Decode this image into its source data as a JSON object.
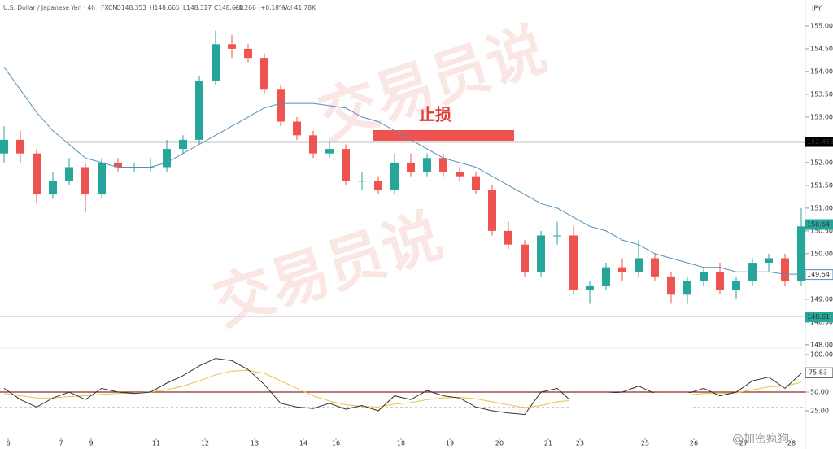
{
  "chart_data": {
    "type": "candlestick",
    "header": {
      "symbol": "U.S. Dollar / Japanese Yen · 4h · FXCM",
      "open": "O148.353",
      "high": "H148.665",
      "low": "L148.317",
      "close": "C148.618",
      "change": "+0.266 (+0.18%)",
      "volume": "Vol 41.78K"
    },
    "currency": "JPY",
    "annotation": "止损",
    "watermark": "交易员说",
    "credit": "@加密疯狗",
    "open": [
      152.2,
      152.5,
      152.2,
      151.3,
      151.6,
      151.9,
      151.3,
      152.0,
      151.9,
      151.9,
      151.9,
      152.3,
      152.5,
      153.8,
      154.6,
      154.5,
      154.3,
      153.6,
      152.9,
      152.6,
      152.2,
      152.3,
      151.6,
      151.6,
      151.4,
      152.0,
      151.8,
      152.1,
      151.8,
      151.7,
      151.4,
      150.5,
      150.2,
      149.6,
      150.4,
      150.4,
      149.2,
      149.3,
      149.7,
      149.6,
      149.9,
      149.5,
      149.1,
      149.4,
      149.6,
      149.2,
      149.4,
      149.8,
      149.9,
      149.4
    ],
    "high": [
      152.8,
      152.7,
      152.3,
      151.8,
      152.1,
      152.0,
      152.1,
      152.1,
      152.0,
      152.1,
      152.5,
      152.6,
      153.9,
      154.9,
      154.8,
      154.6,
      154.4,
      153.7,
      153.0,
      152.7,
      152.5,
      152.4,
      151.8,
      151.7,
      152.2,
      152.2,
      152.2,
      152.2,
      151.9,
      151.8,
      151.5,
      150.7,
      150.3,
      150.5,
      150.7,
      150.6,
      149.4,
      149.8,
      149.9,
      150.3,
      150.0,
      149.6,
      149.5,
      149.7,
      149.8,
      149.5,
      149.9,
      150.0,
      150.0,
      151.0
    ],
    "low": [
      152.0,
      152.0,
      151.1,
      151.2,
      151.5,
      150.9,
      151.2,
      151.8,
      151.8,
      151.8,
      151.8,
      152.2,
      152.4,
      153.7,
      154.3,
      154.2,
      153.5,
      152.8,
      152.5,
      152.1,
      152.1,
      151.5,
      151.4,
      151.3,
      151.3,
      151.7,
      151.7,
      151.7,
      151.6,
      151.3,
      150.4,
      150.1,
      149.5,
      149.5,
      150.2,
      149.1,
      148.9,
      149.2,
      149.4,
      149.5,
      149.4,
      148.9,
      148.9,
      149.3,
      149.1,
      149.0,
      149.3,
      149.6,
      149.3,
      149.3
    ],
    "close": [
      152.5,
      152.2,
      151.3,
      151.6,
      151.9,
      151.3,
      152.0,
      151.9,
      151.9,
      151.9,
      152.3,
      152.5,
      153.8,
      154.6,
      154.5,
      154.3,
      153.6,
      152.9,
      152.6,
      152.2,
      152.3,
      151.6,
      151.6,
      151.4,
      152.0,
      151.8,
      152.1,
      151.8,
      151.7,
      151.4,
      150.5,
      150.2,
      149.6,
      150.4,
      150.4,
      149.2,
      149.3,
      149.7,
      149.6,
      149.9,
      149.5,
      149.1,
      149.4,
      149.6,
      149.2,
      149.4,
      149.8,
      149.9,
      149.4,
      150.6
    ],
    "ma": [
      154.1,
      153.6,
      153.1,
      152.7,
      152.4,
      152.1,
      152.0,
      151.9,
      151.9,
      151.9,
      152.0,
      152.2,
      152.4,
      152.6,
      152.8,
      153.0,
      153.2,
      153.3,
      153.3,
      153.3,
      153.25,
      153.2,
      153.0,
      152.9,
      152.7,
      152.5,
      152.3,
      152.1,
      152.0,
      151.9,
      151.7,
      151.5,
      151.3,
      151.1,
      151.0,
      150.8,
      150.6,
      150.5,
      150.3,
      150.2,
      150.0,
      149.9,
      149.8,
      149.7,
      149.7,
      149.6,
      149.6,
      149.6,
      149.55,
      149.55
    ],
    "up_color": "#26a69a",
    "down_color": "#ef5350",
    "ma_color": "#5b8db8",
    "xlim": [
      -0.25,
      49.25
    ],
    "ylim": [
      147.89,
      155.57
    ],
    "xticks": [
      {
        "value": 0.25,
        "label": "6"
      },
      {
        "value": 3.5,
        "label": "7"
      },
      {
        "value": 5.35,
        "label": "9"
      },
      {
        "value": 9.35,
        "label": "11"
      },
      {
        "value": 12.35,
        "label": "12"
      },
      {
        "value": 15.4,
        "label": "13"
      },
      {
        "value": 18.4,
        "label": "14"
      },
      {
        "value": 20.4,
        "label": "16"
      },
      {
        "value": 24.4,
        "label": "18"
      },
      {
        "value": 27.4,
        "label": "19"
      },
      {
        "value": 30.45,
        "label": "20"
      },
      {
        "value": 33.45,
        "label": "21"
      },
      {
        "value": 35.4,
        "label": "23"
      },
      {
        "value": 39.4,
        "label": "25"
      },
      {
        "value": 42.4,
        "label": "26"
      },
      {
        "value": 45.45,
        "label": "27"
      },
      {
        "value": 48.4,
        "label": "28"
      }
    ],
    "yticks": [
      {
        "value": 148,
        "label": "148.000"
      },
      {
        "value": 148.5,
        "label": "148.500"
      },
      {
        "value": 149,
        "label": "149.000"
      },
      {
        "value": 149.5,
        "label": "149.500"
      },
      {
        "value": 150,
        "label": "150.000"
      },
      {
        "value": 150.5,
        "label": "150.500"
      },
      {
        "value": 151,
        "label": "151.000"
      },
      {
        "value": 151.5,
        "label": "151.500"
      },
      {
        "value": 152,
        "label": "152.000"
      },
      {
        "value": 152.5,
        "label": "152.500"
      },
      {
        "value": 153,
        "label": "153.000"
      },
      {
        "value": 153.5,
        "label": "153.500"
      },
      {
        "value": 154,
        "label": "154.000"
      },
      {
        "value": 154.5,
        "label": "154.500"
      },
      {
        "value": 155,
        "label": "155.000"
      }
    ],
    "stop_line": {
      "value": 152.453,
      "label": "152.453"
    },
    "price_labels": [
      {
        "value": 150.64,
        "label": "150.64",
        "color": "#26a69a"
      },
      {
        "value": 149.54,
        "label": "149.54",
        "color": "#5b8db8"
      },
      {
        "value": 148.61,
        "label": "148.61",
        "color": "#26a69a"
      }
    ],
    "osc": [
      55,
      40,
      30,
      42,
      50,
      40,
      55,
      50,
      48,
      50,
      62,
      72,
      85,
      95,
      92,
      80,
      60,
      35,
      30,
      28,
      35,
      27,
      32,
      25,
      45,
      40,
      52,
      45,
      42,
      30,
      25,
      22,
      20,
      50,
      55,
      35,
      38,
      48,
      50,
      58,
      48,
      38,
      48,
      55,
      45,
      50,
      65,
      70,
      55,
      75
    ],
    "signal": [
      48,
      45,
      42,
      42,
      44,
      45,
      47,
      48,
      49,
      50,
      53,
      58,
      65,
      73,
      78,
      79,
      75,
      65,
      55,
      45,
      38,
      33,
      31,
      30,
      34,
      36,
      40,
      42,
      43,
      41,
      37,
      33,
      29,
      32,
      37,
      39,
      41,
      43,
      45,
      48,
      49,
      46,
      46,
      48,
      48,
      49,
      53,
      57,
      58,
      63
    ],
    "osc_color": "#333333",
    "signal_color": "#e8c24a",
    "y2lim": [
      -10.9,
      108.7
    ],
    "y2ticks": [
      {
        "value": 100,
        "label": "100.00"
      },
      {
        "value": 50,
        "label": "50.00"
      },
      {
        "value": 25,
        "label": "25.00"
      }
    ],
    "osc_current": {
      "value": 75.83,
      "label": "75.83"
    },
    "osc_midline": 50,
    "osc_bands": [
      70,
      30
    ]
  }
}
